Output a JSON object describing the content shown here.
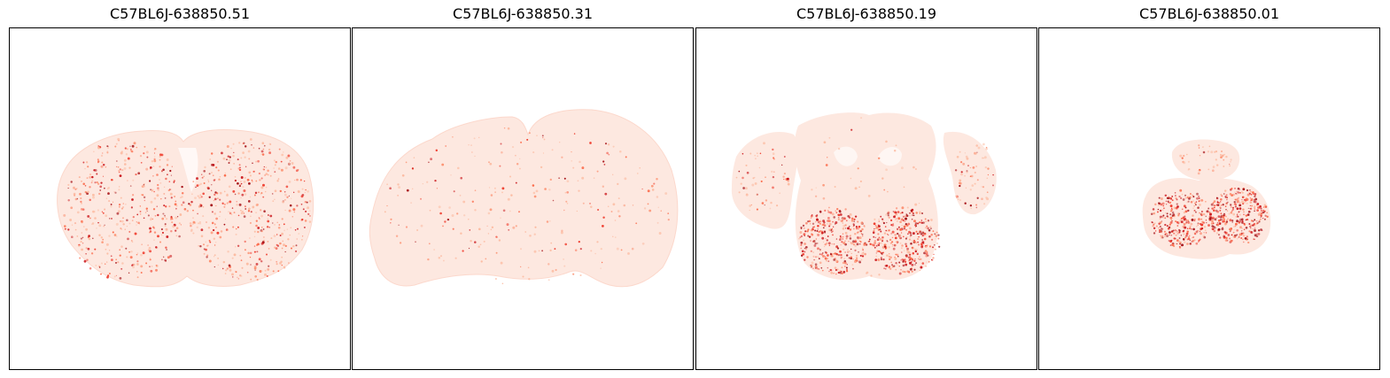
{
  "panels": [
    {
      "title": "C57BL6J-638850.51",
      "section": "forebrain",
      "hotspots": "scattered"
    },
    {
      "title": "C57BL6J-638850.31",
      "section": "midbrain",
      "hotspots": "sparse"
    },
    {
      "title": "C57BL6J-638850.19",
      "section": "hindbrain-cerebellum",
      "hotspots": "ventral-lobes"
    },
    {
      "title": "C57BL6J-638850.01",
      "section": "medulla",
      "hotspots": "bilateral-lobes"
    }
  ],
  "colormap": {
    "low": "#fff5f0",
    "mid": "#fb6a4a",
    "high": "#a50f15"
  }
}
